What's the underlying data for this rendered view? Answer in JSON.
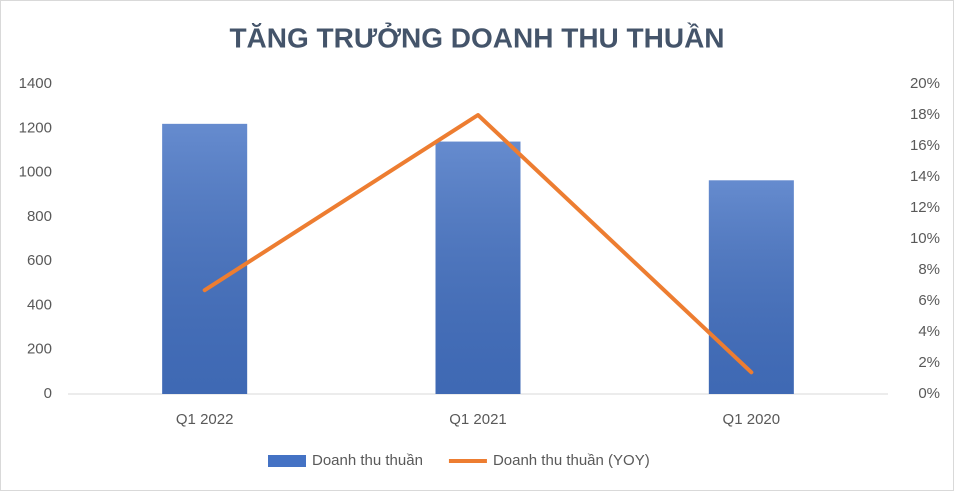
{
  "chart_data": {
    "type": "bar",
    "title": "TĂNG TRƯỞNG DOANH THU THUẦN",
    "categories": [
      "Q1 2022",
      "Q1 2021",
      "Q1 2020"
    ],
    "series": [
      {
        "name": "Doanh thu thuần",
        "kind": "bar",
        "color": "#4472c4",
        "values": [
          1220,
          1140,
          965
        ]
      },
      {
        "name": "Doanh thu thuần (YOY)",
        "kind": "line",
        "axis": "y2",
        "color": "#ed7d31",
        "values": [
          6.7,
          18,
          1.4
        ]
      }
    ],
    "ylim": [
      0,
      1400
    ],
    "yticks": [
      0,
      200,
      400,
      600,
      800,
      1000,
      1200,
      1400
    ],
    "y2lim": [
      0,
      20
    ],
    "y2ticks": [
      {
        "value": 0,
        "label": "0%"
      },
      {
        "value": 2,
        "label": "2%"
      },
      {
        "value": 4,
        "label": "4%"
      },
      {
        "value": 6,
        "label": "6%"
      },
      {
        "value": 8,
        "label": "8%"
      },
      {
        "value": 10,
        "label": "10%"
      },
      {
        "value": 12,
        "label": "12%"
      },
      {
        "value": 14,
        "label": "14%"
      },
      {
        "value": 16,
        "label": "16%"
      },
      {
        "value": 18,
        "label": "18%"
      },
      {
        "value": 20,
        "label": "20%"
      }
    ],
    "grid": false,
    "legend": "bottom"
  }
}
